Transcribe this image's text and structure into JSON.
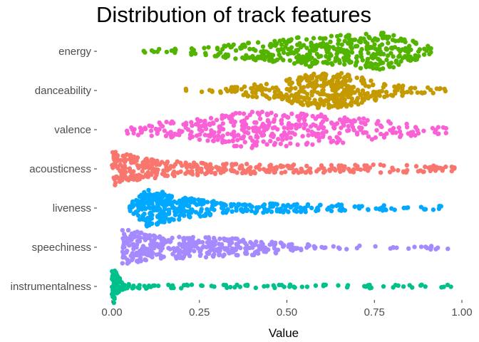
{
  "chart_data": {
    "type": "beeswarm",
    "title": "Distribution of track features",
    "xlabel": "Value",
    "ylabel": "",
    "xlim": [
      0,
      1
    ],
    "x_ticks": [
      "0.00",
      "0.25",
      "0.50",
      "0.75",
      "1.00"
    ],
    "x_tick_values": [
      0,
      0.25,
      0.5,
      0.75,
      1.0
    ],
    "grid": false,
    "legend": "none",
    "categories": [
      "energy",
      "danceability",
      "valence",
      "acousticness",
      "liveness",
      "speechiness",
      "instrumentalness"
    ],
    "series": [
      {
        "color": "#53b400",
        "range": [
          0.07,
          0.92
        ],
        "density": [
          [
            0.07,
            0.6
          ],
          [
            0.15,
            0.9
          ],
          [
            0.28,
            1.5
          ],
          [
            0.42,
            4.0
          ],
          [
            0.55,
            6.5
          ],
          [
            0.68,
            7.0
          ],
          [
            0.78,
            8.0
          ],
          [
            0.86,
            4.5
          ],
          [
            0.92,
            1.0
          ]
        ],
        "sample_size": 420
      },
      {
        "color": "#c49a00",
        "range": [
          0.2,
          0.96
        ],
        "density": [
          [
            0.2,
            0.4
          ],
          [
            0.3,
            0.8
          ],
          [
            0.4,
            2.5
          ],
          [
            0.5,
            5.0
          ],
          [
            0.58,
            8.0
          ],
          [
            0.65,
            8.5
          ],
          [
            0.72,
            5.5
          ],
          [
            0.8,
            2.5
          ],
          [
            0.9,
            0.8
          ],
          [
            0.96,
            0.4
          ]
        ],
        "sample_size": 400
      },
      {
        "color": "#fb61d7",
        "range": [
          0.03,
          0.96
        ],
        "density": [
          [
            0.03,
            0.8
          ],
          [
            0.12,
            2.0
          ],
          [
            0.22,
            3.0
          ],
          [
            0.3,
            4.5
          ],
          [
            0.38,
            6.0
          ],
          [
            0.48,
            5.5
          ],
          [
            0.58,
            5.0
          ],
          [
            0.68,
            4.0
          ],
          [
            0.78,
            2.5
          ],
          [
            0.88,
            1.5
          ],
          [
            0.96,
            0.8
          ]
        ],
        "sample_size": 400
      },
      {
        "color": "#f8766d",
        "range": [
          0.0,
          0.98
        ],
        "density": [
          [
            0.0,
            9.0
          ],
          [
            0.03,
            8.0
          ],
          [
            0.08,
            5.0
          ],
          [
            0.15,
            3.5
          ],
          [
            0.25,
            2.5
          ],
          [
            0.35,
            2.0
          ],
          [
            0.5,
            1.5
          ],
          [
            0.65,
            1.2
          ],
          [
            0.78,
            1.5
          ],
          [
            0.9,
            1.0
          ],
          [
            0.98,
            0.8
          ]
        ],
        "sample_size": 380
      },
      {
        "color": "#00a9ff",
        "range": [
          0.05,
          0.97
        ],
        "density": [
          [
            0.05,
            2.0
          ],
          [
            0.1,
            9.0
          ],
          [
            0.14,
            8.0
          ],
          [
            0.2,
            5.0
          ],
          [
            0.28,
            3.0
          ],
          [
            0.36,
            2.0
          ],
          [
            0.48,
            1.5
          ],
          [
            0.6,
            1.3
          ],
          [
            0.72,
            1.0
          ],
          [
            0.8,
            0.5
          ],
          [
            0.9,
            0.3
          ],
          [
            0.97,
            0.3
          ]
        ],
        "sample_size": 400
      },
      {
        "color": "#a58aff",
        "range": [
          0.03,
          0.96
        ],
        "density": [
          [
            0.03,
            8.0
          ],
          [
            0.06,
            7.0
          ],
          [
            0.12,
            5.0
          ],
          [
            0.2,
            4.5
          ],
          [
            0.28,
            4.0
          ],
          [
            0.36,
            3.5
          ],
          [
            0.45,
            2.5
          ],
          [
            0.52,
            1.0
          ],
          [
            0.6,
            0.4
          ],
          [
            0.72,
            0.2
          ],
          [
            0.85,
            0.2
          ],
          [
            0.93,
            0.6
          ],
          [
            0.96,
            0.4
          ]
        ],
        "sample_size": 380
      },
      {
        "color": "#00c08b",
        "range": [
          0.0,
          0.97
        ],
        "density": [
          [
            0.0,
            12.0
          ],
          [
            0.01,
            10.0
          ],
          [
            0.03,
            1.5
          ],
          [
            0.05,
            0.8
          ],
          [
            0.1,
            0.4
          ],
          [
            0.17,
            0.3
          ],
          [
            0.28,
            0.2
          ],
          [
            0.39,
            0.2
          ],
          [
            0.58,
            0.2
          ],
          [
            0.82,
            0.2
          ],
          [
            0.9,
            0.2
          ],
          [
            0.97,
            0.2
          ]
        ],
        "sample_size": 160
      }
    ]
  }
}
